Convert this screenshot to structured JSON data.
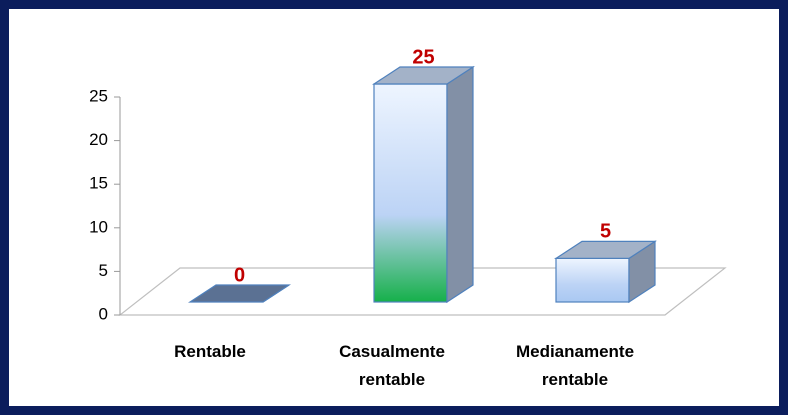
{
  "chart_data": {
    "type": "bar3d",
    "categories": [
      "Rentable",
      "Casualmente rentable",
      "Medianamente rentable"
    ],
    "values": [
      0,
      25,
      5
    ],
    "colors": [
      "#5b7193",
      "#16b04a",
      "#a9c8f2"
    ],
    "label_color": "#c00000",
    "ylim": [
      0,
      25
    ],
    "yticks": [
      0,
      5,
      10,
      15,
      20,
      25
    ]
  }
}
